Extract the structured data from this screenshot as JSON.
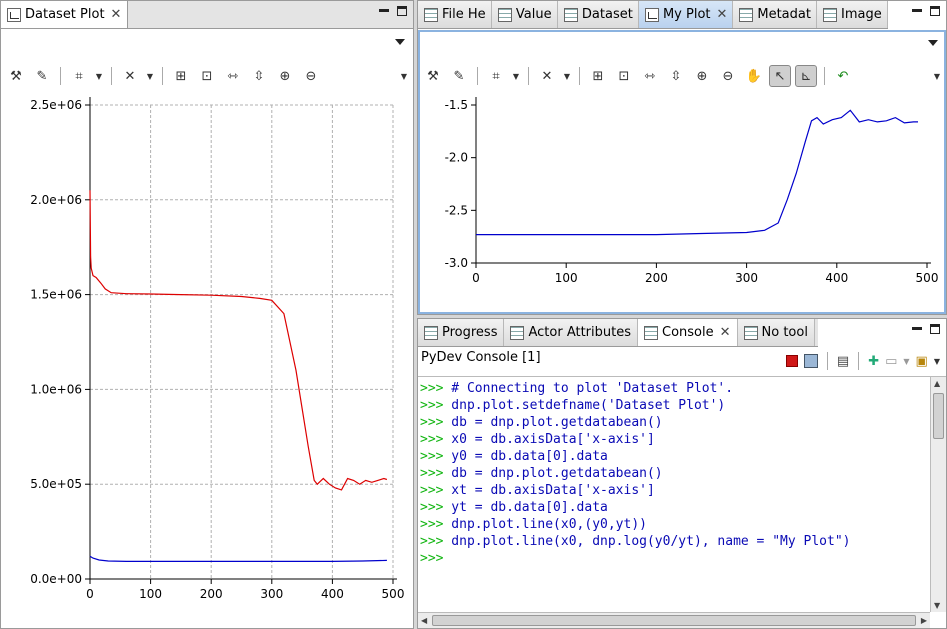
{
  "left_panel": {
    "tab": {
      "label": "Dataset Plot"
    },
    "chart_data": {
      "type": "line",
      "title": "",
      "xlabel": "",
      "ylabel": "",
      "xlim": [
        0,
        500
      ],
      "ylim": [
        0,
        2500000
      ],
      "xticks": [
        "0",
        "100",
        "200",
        "300",
        "400",
        "500"
      ],
      "yticks": [
        "0.0e+00",
        "5.0e+05",
        "1.0e+06",
        "1.5e+06",
        "2.0e+06",
        "2.5e+06"
      ],
      "ytick_values": [
        0,
        500000,
        1000000,
        1500000,
        2000000,
        2500000
      ],
      "grid": true,
      "series": [
        {
          "color": "#dd0000",
          "x": [
            0,
            1,
            2,
            5,
            10,
            18,
            25,
            35,
            60,
            100,
            150,
            200,
            250,
            280,
            300,
            320,
            340,
            350,
            360,
            370,
            375,
            385,
            395,
            405,
            415,
            425,
            435,
            445,
            455,
            465,
            475,
            485,
            490
          ],
          "y": [
            2050000,
            1700000,
            1640000,
            1600000,
            1590000,
            1560000,
            1530000,
            1510000,
            1505000,
            1503000,
            1500000,
            1497000,
            1490000,
            1480000,
            1470000,
            1400000,
            1100000,
            900000,
            700000,
            520000,
            500000,
            530000,
            500000,
            480000,
            470000,
            530000,
            520000,
            500000,
            520000,
            510000,
            520000,
            530000,
            525000
          ]
        },
        {
          "color": "#0000cc",
          "x": [
            0,
            5,
            15,
            30,
            60,
            100,
            200,
            300,
            400,
            450,
            490
          ],
          "y": [
            120000,
            110000,
            100000,
            95000,
            93000,
            93000,
            93000,
            93000,
            93000,
            95000,
            98000
          ]
        }
      ]
    }
  },
  "right_top": {
    "tabs": [
      {
        "label": "File He",
        "icon": "file-header-icon"
      },
      {
        "label": "Value",
        "icon": "value-icon"
      },
      {
        "label": "Dataset",
        "icon": "dataset-icon"
      },
      {
        "label": "My Plot",
        "icon": "chart-icon",
        "active": true
      },
      {
        "label": "Metadat",
        "icon": "metadata-icon"
      },
      {
        "label": "Image",
        "icon": "image-icon"
      }
    ],
    "chart_data": {
      "type": "line",
      "title": "",
      "xlabel": "",
      "ylabel": "",
      "xlim": [
        0,
        500
      ],
      "ylim": [
        -3.0,
        -1.5
      ],
      "xticks": [
        "0",
        "100",
        "200",
        "300",
        "400",
        "500"
      ],
      "yticks": [
        "-3.0",
        "-2.5",
        "-2.0",
        "-1.5"
      ],
      "ytick_values": [
        -3.0,
        -2.5,
        -2.0,
        -1.5
      ],
      "grid": false,
      "series": [
        {
          "color": "#0000cc",
          "x": [
            0,
            100,
            200,
            250,
            300,
            320,
            335,
            345,
            355,
            365,
            372,
            378,
            385,
            395,
            405,
            415,
            425,
            435,
            445,
            455,
            465,
            475,
            485,
            490
          ],
          "y": [
            -2.73,
            -2.73,
            -2.73,
            -2.72,
            -2.71,
            -2.69,
            -2.62,
            -2.4,
            -2.15,
            -1.85,
            -1.65,
            -1.62,
            -1.68,
            -1.64,
            -1.62,
            -1.55,
            -1.66,
            -1.64,
            -1.66,
            -1.65,
            -1.62,
            -1.67,
            -1.66,
            -1.66
          ]
        }
      ]
    }
  },
  "right_bottom": {
    "tabs": [
      {
        "label": "Progress",
        "icon": "progress-icon"
      },
      {
        "label": "Actor Attributes",
        "icon": "actor-icon"
      },
      {
        "label": "Console",
        "icon": "console-icon",
        "active": true
      },
      {
        "label": "No tool",
        "icon": "tool-icon"
      }
    ],
    "console_title": "PyDev Console [1]",
    "lines": [
      {
        "prompt": ">>>",
        "code": " # Connecting to plot 'Dataset Plot'."
      },
      {
        "prompt": ">>>",
        "code": " dnp.plot.setdefname('Dataset Plot')"
      },
      {
        "prompt": ">>>",
        "code": " db = dnp.plot.getdatabean()"
      },
      {
        "prompt": ">>>",
        "code": " x0 = db.axisData['x-axis']"
      },
      {
        "prompt": ">>>",
        "code": " y0 = db.data[0].data"
      },
      {
        "prompt": ">>>",
        "code": " db = dnp.plot.getdatabean()"
      },
      {
        "prompt": ">>>",
        "code": " xt = db.axisData['x-axis']"
      },
      {
        "prompt": ">>>",
        "code": " yt = db.data[0].data"
      },
      {
        "prompt": ">>>",
        "code": " dnp.plot.line(x0,(y0,yt))"
      },
      {
        "prompt": ">>>",
        "code": " dnp.plot.line(x0, dnp.log(y0/yt), name = \"My Plot\")"
      },
      {
        "prompt": ">>>",
        "code": ""
      }
    ]
  }
}
